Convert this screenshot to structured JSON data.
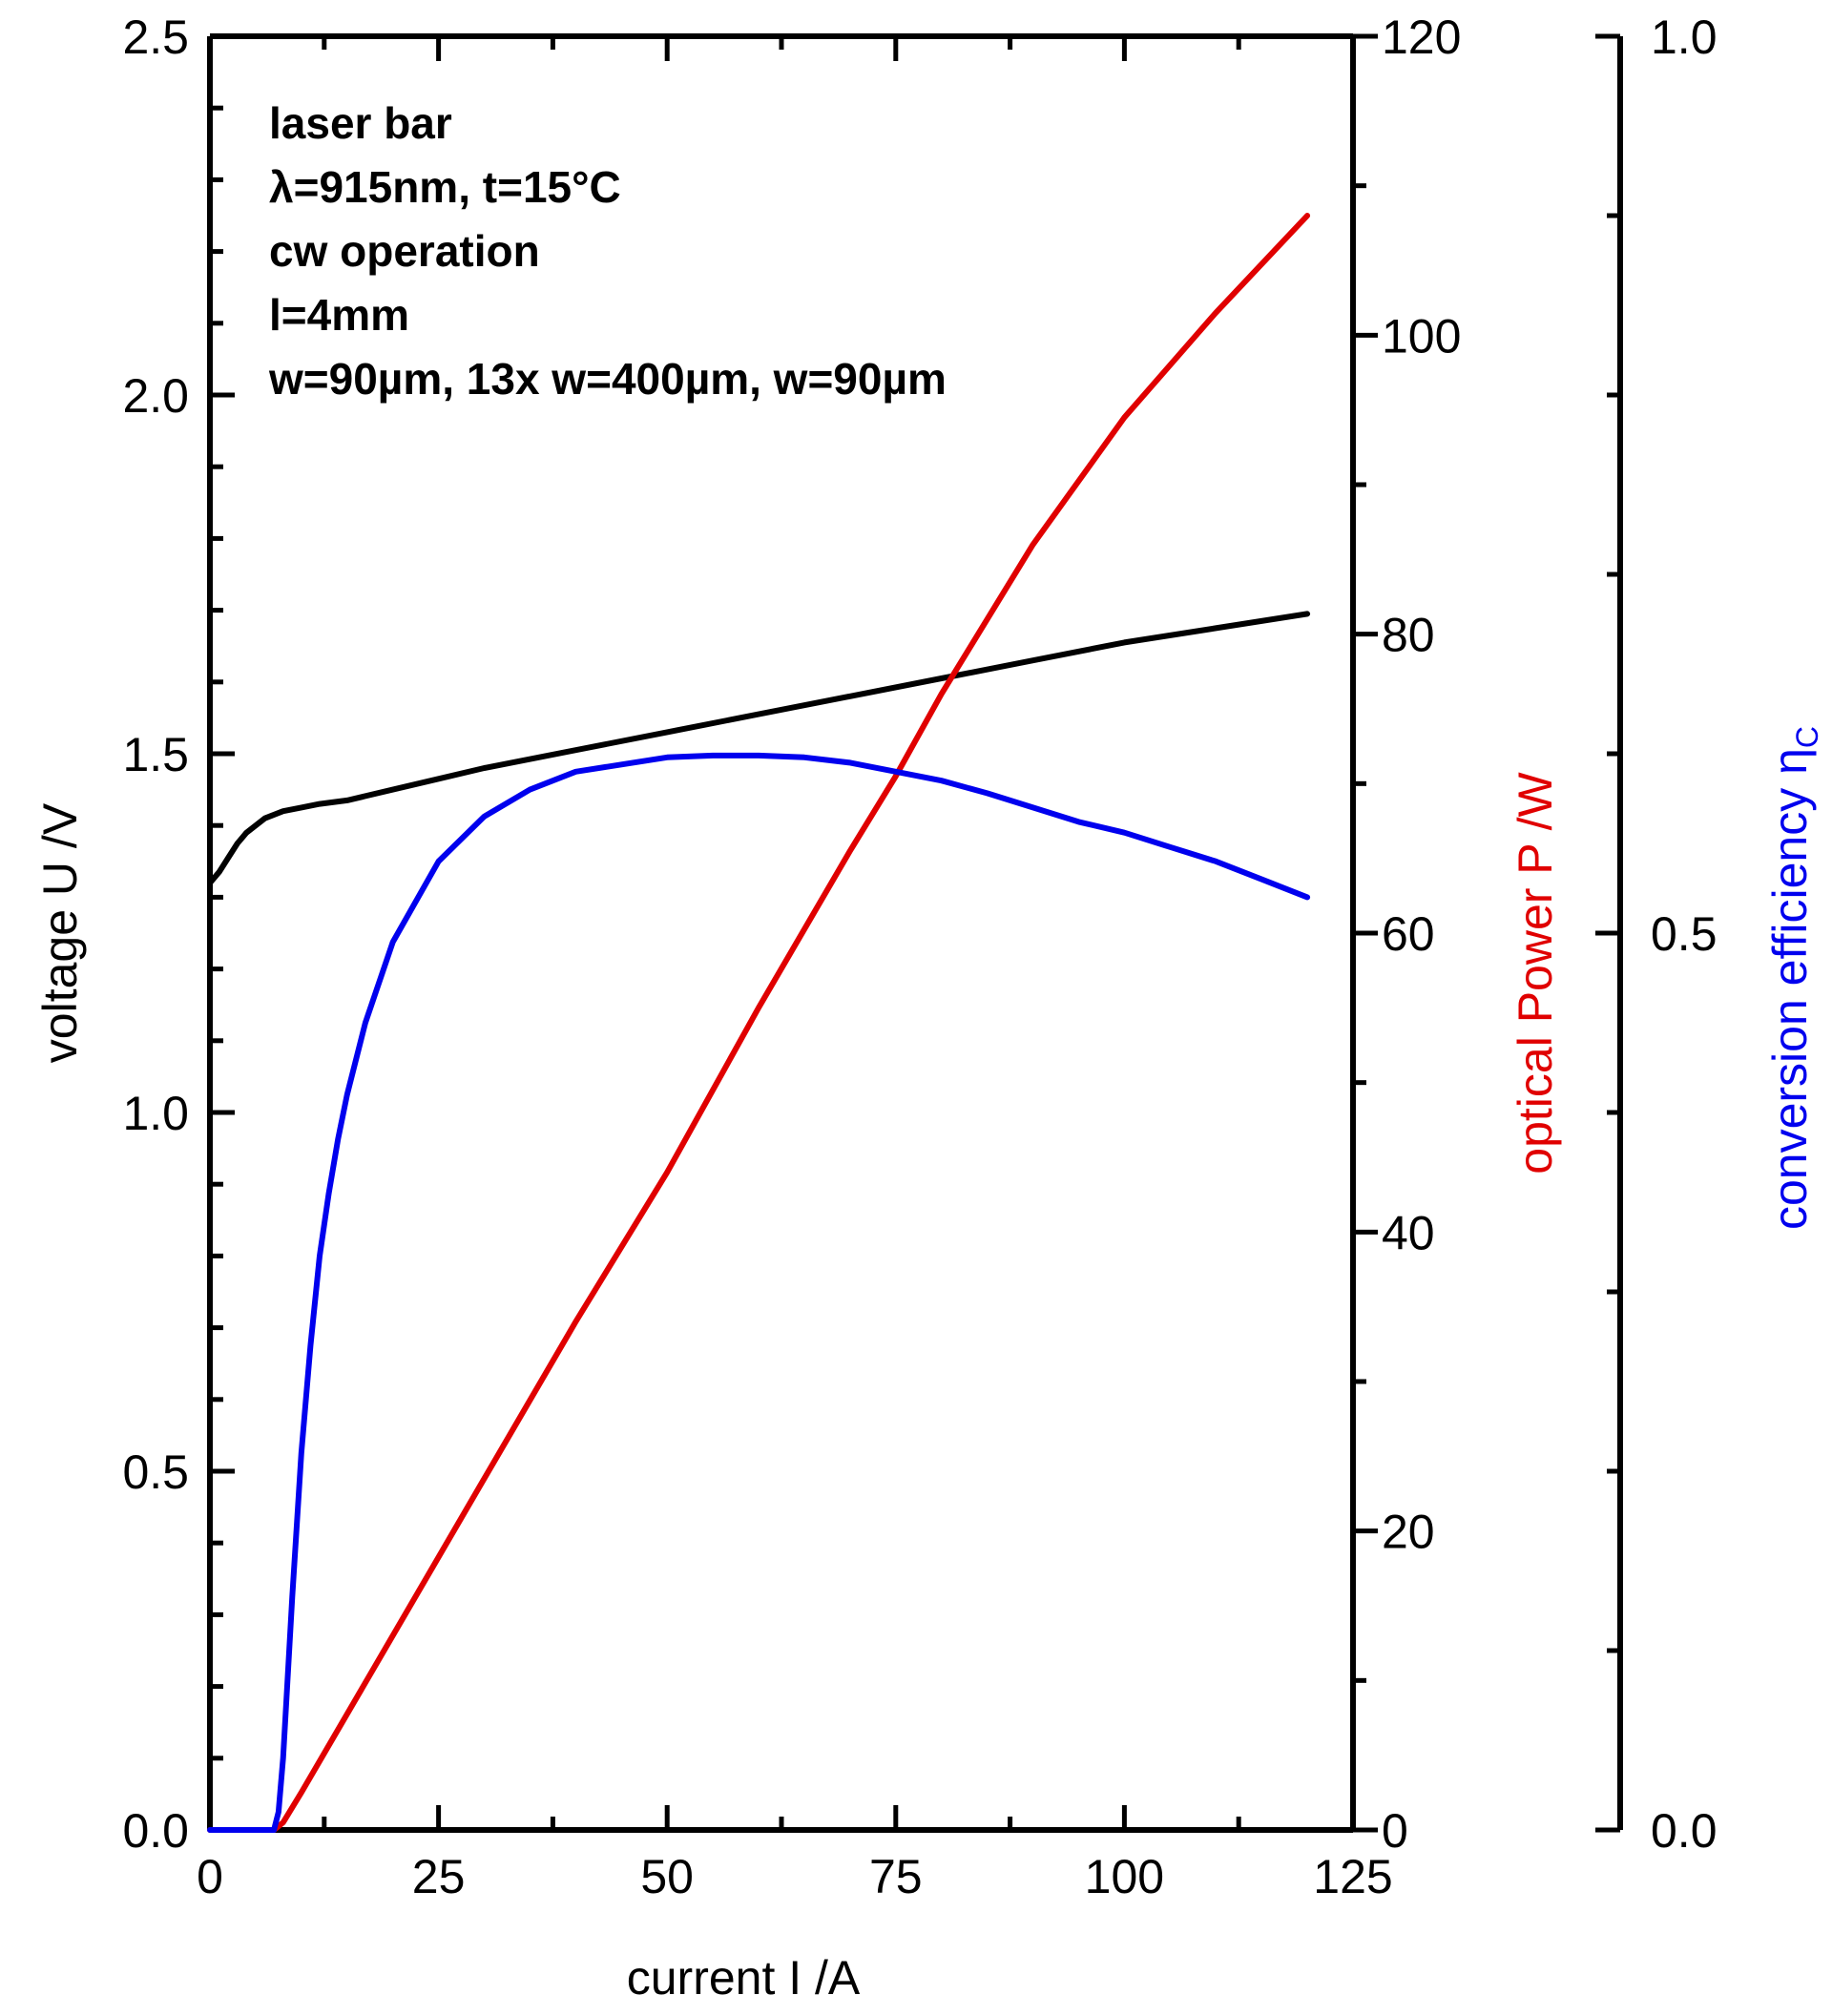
{
  "chart_data": {
    "type": "line",
    "annotations": [
      "laser bar",
      "λ=915nm, t=15°C",
      "cw operation",
      "l=4mm",
      "w=90µm, 13x w=400µm, w=90µm"
    ],
    "xlabel": "current I /A",
    "xlim": [
      0,
      125
    ],
    "xticks": [
      "0",
      "25",
      "50",
      "75",
      "100",
      "125"
    ],
    "axes": {
      "voltage": {
        "label": "voltage U /V",
        "ylim": [
          0,
          2.5
        ],
        "ticks": [
          "0.0",
          "0.5",
          "1.0",
          "1.5",
          "2.0",
          "2.5"
        ],
        "color": "#000000",
        "side": "left"
      },
      "power": {
        "label": "optical Power P /W",
        "ylim": [
          0,
          120
        ],
        "ticks": [
          "0",
          "20",
          "40",
          "60",
          "80",
          "100",
          "120"
        ],
        "color": "#e00000",
        "side": "right"
      },
      "efficiency": {
        "label_main": "conversion efficiency η",
        "label_sub": "C",
        "ylim": [
          0,
          1.0
        ],
        "ticks": [
          "0.0",
          "0.5",
          "1.0"
        ],
        "color": "#0000ee",
        "side": "right-offset"
      }
    },
    "grid": false,
    "series": [
      {
        "axis": "voltage",
        "color": "#000000",
        "x": [
          0,
          1,
          2,
          3,
          4,
          5,
          6,
          7,
          8,
          10,
          12,
          15,
          20,
          25,
          30,
          40,
          50,
          60,
          70,
          80,
          90,
          100,
          110,
          120
        ],
        "y": [
          1.32,
          1.335,
          1.355,
          1.375,
          1.39,
          1.4,
          1.41,
          1.415,
          1.42,
          1.425,
          1.43,
          1.435,
          1.45,
          1.465,
          1.48,
          1.505,
          1.53,
          1.555,
          1.58,
          1.605,
          1.63,
          1.655,
          1.675,
          1.695
        ]
      },
      {
        "axis": "power",
        "color": "#e00000",
        "x": [
          0,
          7,
          8,
          10,
          20,
          30,
          40,
          50,
          60,
          70,
          75,
          80,
          90,
          100,
          110,
          120
        ],
        "y": [
          0,
          0,
          0.5,
          2.5,
          13,
          23.5,
          34,
          44,
          55,
          65.5,
          70.5,
          76,
          86,
          94.5,
          101.5,
          108
        ]
      },
      {
        "axis": "efficiency",
        "color": "#0000ee",
        "x": [
          0,
          7,
          7.5,
          8,
          9,
          10,
          11,
          12,
          13,
          14,
          15,
          17,
          20,
          25,
          30,
          35,
          40,
          45,
          50,
          55,
          60,
          65,
          70,
          75,
          80,
          85,
          90,
          95,
          100,
          105,
          110,
          115,
          120
        ],
        "y": [
          0,
          0,
          0.01,
          0.04,
          0.13,
          0.21,
          0.27,
          0.32,
          0.355,
          0.385,
          0.41,
          0.45,
          0.495,
          0.54,
          0.565,
          0.58,
          0.59,
          0.594,
          0.598,
          0.599,
          0.599,
          0.598,
          0.595,
          0.59,
          0.585,
          0.578,
          0.57,
          0.562,
          0.556,
          0.548,
          0.54,
          0.53,
          0.52
        ]
      }
    ]
  }
}
